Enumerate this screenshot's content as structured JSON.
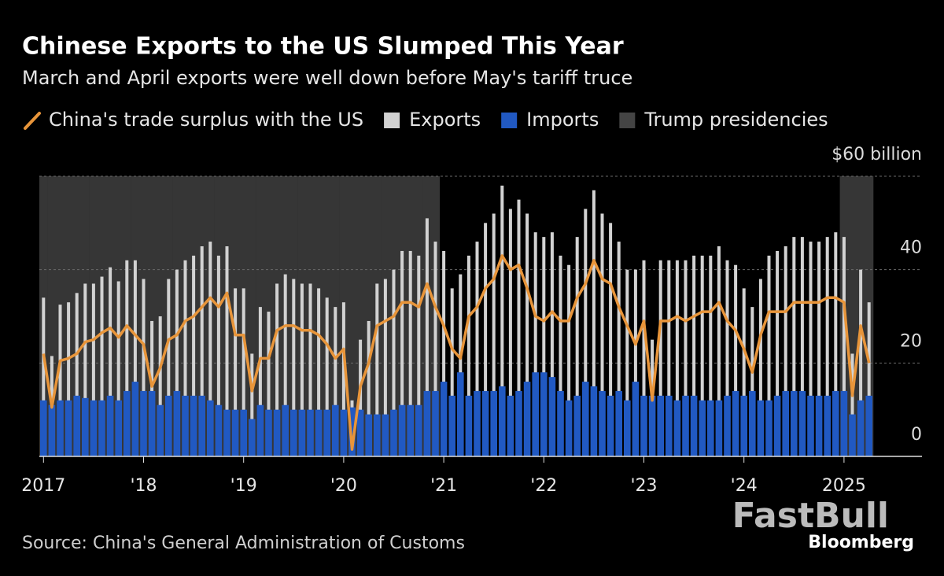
{
  "chart_data": {
    "type": "bar",
    "title": "Chinese Exports to the US Slumped This Year",
    "subtitle": "March and April exports were well down before May's tariff truce",
    "source": "Source: China's General Administration of Customs",
    "logo": "Bloomberg",
    "watermark": "FastBull",
    "categories": [
      "2017",
      null,
      null,
      null,
      null,
      null,
      null,
      null,
      null,
      null,
      null,
      null,
      "'18",
      null,
      null,
      null,
      null,
      null,
      null,
      null,
      null,
      null,
      null,
      null,
      "'19",
      null,
      null,
      null,
      null,
      null,
      null,
      null,
      null,
      null,
      null,
      null,
      "'20",
      null,
      null,
      null,
      null,
      null,
      null,
      null,
      null,
      null,
      null,
      null,
      "'21",
      null,
      null,
      null,
      null,
      null,
      null,
      null,
      null,
      null,
      null,
      null,
      "'22",
      null,
      null,
      null,
      null,
      null,
      null,
      null,
      null,
      null,
      null,
      null,
      "'23",
      null,
      null,
      null,
      null,
      null,
      null,
      null,
      null,
      null,
      null,
      null,
      "'24",
      null,
      null,
      null,
      null,
      null,
      null,
      null,
      null,
      null,
      null,
      null,
      "2025",
      null,
      null,
      null
    ],
    "series": [
      {
        "name": "China's trade surplus with the US",
        "type": "line",
        "color": "#e8953a",
        "values": [
          22,
          10.5,
          20.5,
          21,
          22,
          24.5,
          25,
          26.5,
          27.5,
          25.5,
          28,
          26,
          24,
          15,
          19,
          25,
          26,
          29,
          30,
          32,
          34,
          32,
          35,
          26,
          26,
          14,
          21,
          21,
          27,
          28,
          28,
          27,
          27,
          26,
          24,
          21,
          23,
          1.5,
          15,
          20,
          28,
          29,
          30,
          33,
          33,
          32,
          37,
          32,
          28,
          23,
          21,
          30,
          32,
          36,
          38,
          43,
          40,
          41,
          36,
          30,
          29,
          31,
          29,
          29,
          34,
          37,
          42,
          38,
          37,
          32,
          28,
          24,
          29,
          12,
          29,
          29,
          30,
          29,
          30,
          31,
          31,
          33,
          29,
          27,
          23,
          18,
          26,
          31,
          31,
          31,
          33,
          33,
          33,
          33,
          34,
          34,
          33,
          13,
          28,
          20
        ]
      },
      {
        "name": "Exports",
        "type": "bar",
        "color": "#d2d2d2",
        "values": [
          34,
          21.5,
          32.5,
          33,
          35,
          37,
          37,
          38.5,
          40.5,
          37.5,
          42,
          42,
          38,
          29,
          30,
          38,
          40,
          42,
          43,
          45,
          46,
          43,
          45,
          36,
          36,
          22,
          32,
          31,
          37,
          39,
          38,
          37,
          37,
          36,
          34,
          32,
          33,
          12,
          25,
          29,
          37,
          38,
          40,
          44,
          44,
          43,
          51,
          46,
          44,
          36,
          39,
          43,
          46,
          50,
          52,
          58,
          53,
          55,
          52,
          48,
          47,
          48,
          43,
          41,
          47,
          53,
          57,
          52,
          50,
          46,
          40,
          40,
          42,
          25,
          42,
          42,
          42,
          42,
          43,
          43,
          43,
          45,
          42,
          41,
          36,
          32,
          38,
          43,
          44,
          45,
          47,
          47,
          46,
          46,
          47,
          48,
          47,
          22,
          40,
          33
        ]
      },
      {
        "name": "Imports",
        "type": "bar",
        "color": "#2159c2",
        "values": [
          12,
          11,
          12,
          12,
          13,
          12.5,
          12,
          12,
          13,
          12,
          14,
          16,
          14,
          14,
          11,
          13,
          14,
          13,
          13,
          13,
          12,
          11,
          10,
          10,
          10,
          8,
          11,
          10,
          10,
          11,
          10,
          10,
          10,
          10,
          10,
          11,
          10,
          10.5,
          10,
          9,
          9,
          9,
          10,
          11,
          11,
          11,
          14,
          14,
          16,
          13,
          18,
          13,
          14,
          14,
          14,
          15,
          13,
          14,
          16,
          18,
          18,
          17,
          14,
          12,
          13,
          16,
          15,
          14,
          13,
          14,
          12,
          16,
          13,
          13,
          13,
          13,
          12,
          13,
          13,
          12,
          12,
          12,
          13,
          14,
          13,
          14,
          12,
          12,
          13,
          14,
          14,
          14,
          13,
          13,
          13,
          14,
          14,
          9,
          12,
          13
        ]
      },
      {
        "name": "Trump presidencies",
        "type": "shade",
        "color": "#363636",
        "values": [
          60,
          60,
          60,
          60,
          60,
          60,
          60,
          60,
          60,
          60,
          60,
          60,
          60,
          60,
          60,
          60,
          60,
          60,
          60,
          60,
          60,
          60,
          60,
          60,
          60,
          60,
          60,
          60,
          60,
          60,
          60,
          60,
          60,
          60,
          60,
          60,
          60,
          60,
          60,
          60,
          60,
          60,
          60,
          60,
          60,
          60,
          60,
          60,
          null,
          null,
          null,
          null,
          null,
          null,
          null,
          null,
          null,
          null,
          null,
          null,
          null,
          null,
          null,
          null,
          null,
          null,
          null,
          null,
          null,
          null,
          null,
          null,
          null,
          null,
          null,
          null,
          null,
          null,
          null,
          null,
          null,
          null,
          null,
          null,
          null,
          null,
          null,
          null,
          null,
          null,
          null,
          null,
          null,
          null,
          null,
          null,
          60,
          60,
          60,
          60
        ]
      }
    ],
    "ylim": [
      0,
      60
    ],
    "yticks": [
      0,
      20,
      40,
      {
        "value": 60,
        "label": "$60 billion"
      }
    ],
    "grid": true
  }
}
